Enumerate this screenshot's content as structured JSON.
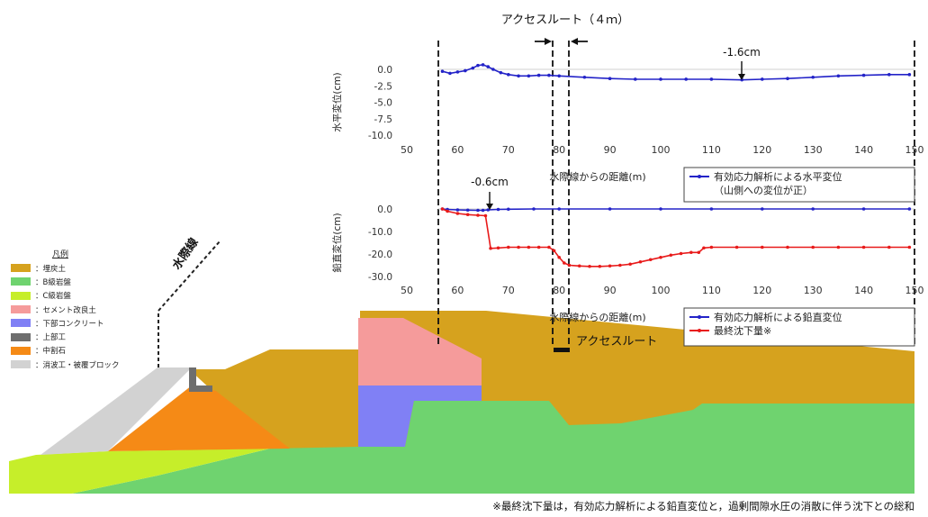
{
  "header": {
    "access_route_label": "アクセスルート（４ｍ）",
    "min_horizontal_note": "-1.6cm",
    "min_vertical_note": "-0.6cm",
    "access_route_bottom_label": "アクセスルート",
    "waterline_label": "水際線",
    "footnote": "※最終沈下量は，有効応力解析による鉛直変位と，過剰間隙水圧の消散に伴う沈下との総和"
  },
  "legend": {
    "title": "凡例",
    "items": [
      {
        "label": "：埋戻土",
        "color": "#d6a21e"
      },
      {
        "label": "：B級岩盤",
        "color": "#6fd36f"
      },
      {
        "label": "：C級岩盤",
        "color": "#c6ee2a"
      },
      {
        "label": "：セメント改良土",
        "color": "#f59b9b"
      },
      {
        "label": "：下部コンクリート",
        "color": "#8080f5"
      },
      {
        "label": "：上部工",
        "color": "#6e6e6e"
      },
      {
        "label": "：中割石",
        "color": "#f58a16"
      },
      {
        "label": "：消波工・被覆ブロック",
        "color": "#d2d2d2"
      }
    ]
  },
  "chart_data": [
    {
      "type": "line",
      "ylabel": "水平変位(cm)",
      "xlabel": "水際線からの距離(m)",
      "xlim": [
        50,
        150
      ],
      "ylim": [
        -10.0,
        0.0
      ],
      "xticks": [
        "50",
        "60",
        "70",
        "80",
        "90",
        "100",
        "110",
        "120",
        "130",
        "140",
        "150"
      ],
      "yticks": [
        "0.0",
        "-2.5",
        "-5.0",
        "-7.5",
        "-10.0"
      ],
      "grid": false,
      "legend_placement": "bottom-right",
      "series": [
        {
          "name": "有効応力解析による水平変位\n（山側への変位が正）",
          "color": "#2323c8",
          "x": [
            57,
            58.5,
            60,
            61.5,
            63,
            64,
            65,
            66,
            67,
            68.5,
            70,
            72,
            74,
            76,
            78,
            80,
            85,
            90,
            95,
            100,
            105,
            110,
            116,
            120,
            125,
            130,
            135,
            140,
            145,
            149
          ],
          "values": [
            -0.3,
            -0.6,
            -0.4,
            -0.2,
            0.2,
            0.6,
            0.7,
            0.4,
            0.0,
            -0.5,
            -0.8,
            -1.0,
            -1.0,
            -0.9,
            -0.9,
            -1.0,
            -1.2,
            -1.4,
            -1.5,
            -1.5,
            -1.5,
            -1.5,
            -1.6,
            -1.5,
            -1.4,
            -1.2,
            -1.0,
            -0.9,
            -0.8,
            -0.8
          ]
        }
      ]
    },
    {
      "type": "line",
      "ylabel": "鉛直変位(cm)",
      "xlabel": "水際線からの距離(m)",
      "xlim": [
        50,
        150
      ],
      "ylim": [
        -30.0,
        0.0
      ],
      "xticks": [
        "50",
        "60",
        "70",
        "80",
        "90",
        "100",
        "110",
        "120",
        "130",
        "140",
        "150"
      ],
      "yticks": [
        "0.0",
        "-10.0",
        "-20.0",
        "-30.0"
      ],
      "grid": false,
      "legend_placement": "bottom-right",
      "series": [
        {
          "name": "有効応力解析による鉛直変位",
          "color": "#2323c8",
          "x": [
            57,
            58,
            60,
            62,
            64,
            65,
            66,
            68,
            70,
            75,
            80,
            90,
            100,
            110,
            120,
            130,
            140,
            149
          ],
          "values": [
            0.0,
            -0.2,
            -0.4,
            -0.5,
            -0.6,
            -0.6,
            -0.4,
            -0.2,
            -0.1,
            0.0,
            0.0,
            0.0,
            0.0,
            0.0,
            0.0,
            0.0,
            0.0,
            0.0
          ]
        },
        {
          "name": "最終沈下量※",
          "color": "#e81a1a",
          "x": [
            57,
            58,
            60,
            62,
            64,
            65.5,
            66.5,
            68,
            70,
            72,
            74,
            76,
            78,
            79,
            80,
            81,
            82,
            84,
            86,
            88,
            90,
            92,
            94,
            96,
            98,
            100,
            102,
            104,
            106,
            107.5,
            108.5,
            110,
            115,
            120,
            125,
            130,
            135,
            140,
            145,
            149
          ],
          "values": [
            0.0,
            -1.0,
            -2.0,
            -2.5,
            -2.8,
            -3.0,
            -17.5,
            -17.3,
            -17.0,
            -17.0,
            -17.0,
            -17.0,
            -17.0,
            -18.5,
            -21.5,
            -24.0,
            -25.0,
            -25.3,
            -25.5,
            -25.5,
            -25.3,
            -25.0,
            -24.5,
            -23.5,
            -22.5,
            -21.5,
            -20.5,
            -19.8,
            -19.3,
            -19.3,
            -17.3,
            -17.0,
            -17.0,
            -17.0,
            -17.0,
            -17.0,
            -17.0,
            -17.0,
            -17.0,
            -17.0
          ]
        }
      ]
    }
  ]
}
